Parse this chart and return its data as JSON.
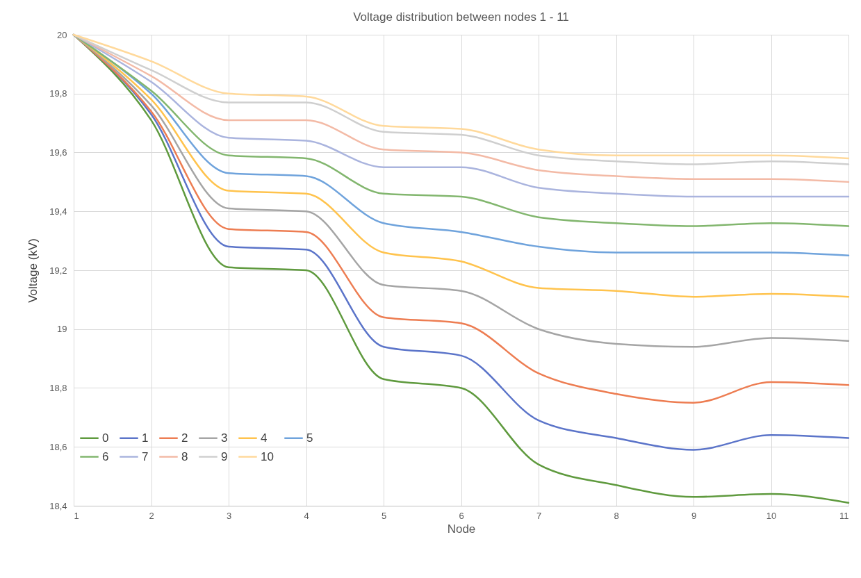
{
  "chart_data": {
    "type": "line",
    "title": "Voltage distribution between nodes 1 - 11",
    "xlabel": "Node",
    "ylabel": "Voltage (kV)",
    "x": [
      1,
      2,
      3,
      4,
      5,
      6,
      7,
      8,
      9,
      10,
      11
    ],
    "xlim": [
      1,
      11
    ],
    "xticks": [
      1,
      2,
      3,
      4,
      5,
      6,
      7,
      8,
      9,
      10,
      11
    ],
    "ylim": [
      18.4,
      20
    ],
    "yticks": [
      {
        "value": 18.4,
        "label": "18,4"
      },
      {
        "value": 18.6,
        "label": "18,6"
      },
      {
        "value": 18.8,
        "label": "18,8"
      },
      19,
      {
        "value": 19.2,
        "label": "19,2"
      },
      {
        "value": 19.4,
        "label": "19,4"
      },
      {
        "value": 19.6,
        "label": "19,6"
      },
      {
        "value": 19.8,
        "label": "19,8"
      },
      20
    ],
    "grid": true,
    "legend": "bottom left",
    "marker": "none",
    "line_style": "solid",
    "series": [
      {
        "name": "0",
        "color": "#5f9a3e",
        "values": [
          20,
          19.71,
          19.21,
          19.2,
          18.83,
          18.8,
          18.54,
          18.47,
          18.43,
          18.44,
          18.41
        ]
      },
      {
        "name": "1",
        "color": "#5b74c9",
        "values": [
          20,
          19.73,
          19.28,
          19.27,
          18.94,
          18.91,
          18.69,
          18.63,
          18.59,
          18.64,
          18.63
        ]
      },
      {
        "name": "2",
        "color": "#ed7d52",
        "values": [
          20,
          19.74,
          19.34,
          19.33,
          19.04,
          19.02,
          18.85,
          18.78,
          18.75,
          18.82,
          18.81
        ]
      },
      {
        "name": "3",
        "color": "#a5a5a5",
        "values": [
          20,
          19.76,
          19.41,
          19.4,
          19.15,
          19.13,
          19.0,
          18.95,
          18.94,
          18.97,
          18.96
        ]
      },
      {
        "name": "4",
        "color": "#ffc34d",
        "values": [
          20,
          19.78,
          19.47,
          19.46,
          19.26,
          19.23,
          19.14,
          19.13,
          19.11,
          19.12,
          19.11
        ]
      },
      {
        "name": "5",
        "color": "#6fa3dc",
        "values": [
          20,
          19.8,
          19.53,
          19.52,
          19.36,
          19.33,
          19.28,
          19.26,
          19.26,
          19.26,
          19.25
        ]
      },
      {
        "name": "6",
        "color": "#82b66e",
        "values": [
          20,
          19.81,
          19.59,
          19.58,
          19.46,
          19.45,
          19.38,
          19.36,
          19.35,
          19.36,
          19.35
        ]
      },
      {
        "name": "7",
        "color": "#aab4de",
        "values": [
          20,
          19.84,
          19.65,
          19.64,
          19.55,
          19.55,
          19.48,
          19.46,
          19.45,
          19.45,
          19.45
        ]
      },
      {
        "name": "8",
        "color": "#f3baa6",
        "values": [
          20,
          19.86,
          19.71,
          19.71,
          19.61,
          19.6,
          19.54,
          19.52,
          19.51,
          19.51,
          19.5
        ]
      },
      {
        "name": "9",
        "color": "#cfcfcf",
        "values": [
          20,
          19.88,
          19.77,
          19.77,
          19.67,
          19.66,
          19.59,
          19.57,
          19.56,
          19.57,
          19.56
        ]
      },
      {
        "name": "10",
        "color": "#ffd99b",
        "values": [
          20,
          19.91,
          19.8,
          19.79,
          19.69,
          19.68,
          19.61,
          19.59,
          19.59,
          19.59,
          19.58
        ]
      }
    ]
  }
}
